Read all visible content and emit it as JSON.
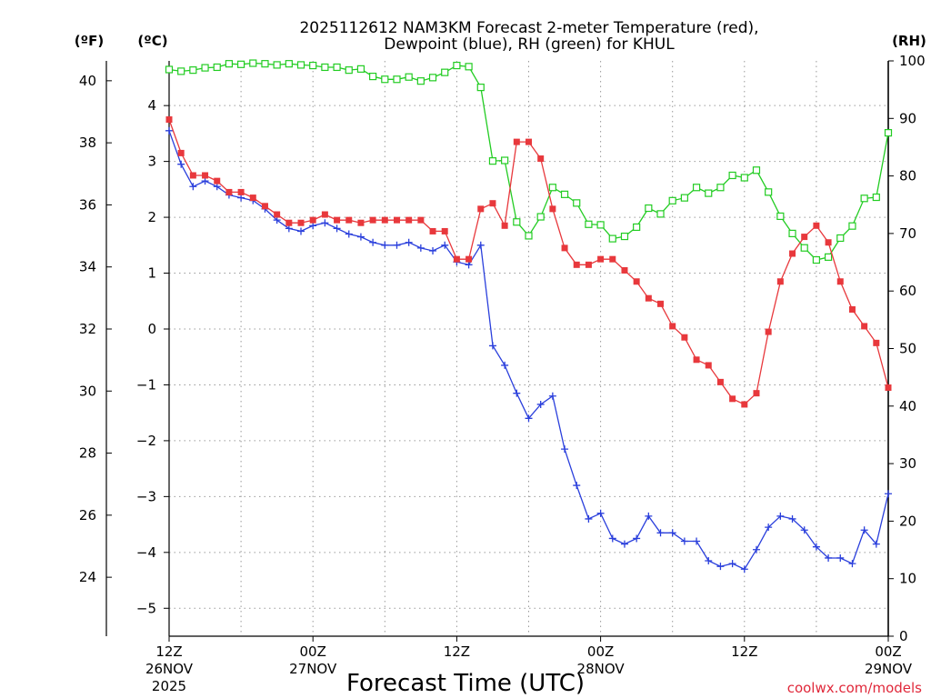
{
  "chart_data": {
    "type": "line",
    "title_lines": [
      "2025112612 NAM3KM Forecast 2-meter Temperature (red),",
      "Dewpoint (blue), RH (green) for KHUL"
    ],
    "xlabel": "Forecast Time (UTC)",
    "credit": "coolwx.com/models",
    "units": {
      "fahrenheit": "(ºF)",
      "celsius": "(ºC)",
      "rh": "(RH)"
    },
    "x_range_hours": [
      0,
      60
    ],
    "celsius_range": [
      -5.5,
      4.8
    ],
    "fahrenheit_range": [
      22.1,
      40.64
    ],
    "rh_range": [
      0,
      100
    ],
    "celsius_ticks": [
      "4",
      "3",
      "2",
      "1",
      "0",
      "−1",
      "−2",
      "−3",
      "−4",
      "−5"
    ],
    "fahrenheit_ticks": [
      "40",
      "38",
      "36",
      "34",
      "32",
      "30",
      "28",
      "26",
      "24"
    ],
    "rh_ticks": [
      "100",
      "90",
      "80",
      "70",
      "60",
      "50",
      "40",
      "30",
      "20",
      "10",
      "0"
    ],
    "x_ticks": [
      {
        "hour": 0,
        "hhz": "12Z",
        "date": "26NOV",
        "year": "2025"
      },
      {
        "hour": 12,
        "hhz": "00Z",
        "date": "27NOV",
        "year": ""
      },
      {
        "hour": 24,
        "hhz": "12Z",
        "date": "",
        "year": ""
      },
      {
        "hour": 36,
        "hhz": "00Z",
        "date": "28NOV",
        "year": ""
      },
      {
        "hour": 48,
        "hhz": "12Z",
        "date": "",
        "year": ""
      },
      {
        "hour": 60,
        "hhz": "00Z",
        "date": "29NOV",
        "year": ""
      }
    ],
    "colors": {
      "temperature": "#e8383c",
      "dewpoint": "#2a3fdc",
      "rh": "#22cc22",
      "grid": "#9a9a9a"
    },
    "series": [
      {
        "name": "Temperature",
        "unit": "C",
        "marker": "filled-square",
        "values": [
          3.75,
          3.15,
          2.75,
          2.75,
          2.65,
          2.45,
          2.45,
          2.35,
          2.2,
          2.05,
          1.9,
          1.9,
          1.95,
          2.05,
          1.95,
          1.95,
          1.9,
          1.95,
          1.95,
          1.95,
          1.95,
          1.95,
          1.75,
          1.75,
          1.25,
          1.25,
          2.15,
          2.25,
          1.85,
          3.35,
          3.35,
          3.05,
          2.15,
          1.45,
          1.15,
          1.15,
          1.25,
          1.25,
          1.05,
          0.85,
          0.55,
          0.45,
          0.05,
          -0.15,
          -0.55,
          -0.65,
          -0.95,
          -1.25,
          -1.35,
          -1.15,
          -0.05,
          0.85,
          1.35,
          1.65,
          1.85,
          1.55,
          0.85,
          0.35,
          0.05,
          -0.25,
          -1.05
        ]
      },
      {
        "name": "Dewpoint",
        "unit": "C",
        "marker": "plus",
        "values": [
          3.55,
          2.95,
          2.55,
          2.65,
          2.55,
          2.4,
          2.35,
          2.3,
          2.15,
          1.95,
          1.8,
          1.75,
          1.85,
          1.9,
          1.8,
          1.7,
          1.65,
          1.55,
          1.5,
          1.5,
          1.55,
          1.45,
          1.4,
          1.5,
          1.2,
          1.15,
          1.5,
          -0.3,
          -0.65,
          -1.15,
          -1.6,
          -1.35,
          -1.2,
          -2.15,
          -2.8,
          -3.4,
          -3.3,
          -3.75,
          -3.85,
          -3.75,
          -3.35,
          -3.65,
          -3.65,
          -3.8,
          -3.8,
          -4.15,
          -4.25,
          -4.2,
          -4.3,
          -3.95,
          -3.55,
          -3.35,
          -3.4,
          -3.6,
          -3.9,
          -4.1,
          -4.1,
          -4.2,
          -3.6,
          -3.85,
          -2.95
        ]
      },
      {
        "name": "RH",
        "unit": "%",
        "marker": "open-square",
        "values": [
          98.5,
          98.2,
          98.4,
          98.8,
          98.9,
          99.5,
          99.4,
          99.6,
          99.5,
          99.3,
          99.5,
          99.3,
          99.2,
          98.9,
          98.9,
          98.4,
          98.6,
          97.3,
          96.8,
          96.8,
          97.2,
          96.5,
          97.1,
          98.0,
          99.2,
          99.0,
          95.4,
          82.6,
          82.7,
          72.0,
          69.6,
          72.9,
          78.0,
          76.8,
          75.3,
          71.6,
          71.5,
          69.1,
          69.5,
          71.1,
          74.4,
          73.4,
          75.7,
          76.2,
          78.0,
          77.0,
          78.0,
          80.1,
          79.7,
          81.0,
          77.2,
          73.0,
          70.0,
          67.5,
          65.4,
          65.9,
          69.2,
          71.3,
          76.1,
          76.3,
          87.5
        ]
      }
    ]
  }
}
